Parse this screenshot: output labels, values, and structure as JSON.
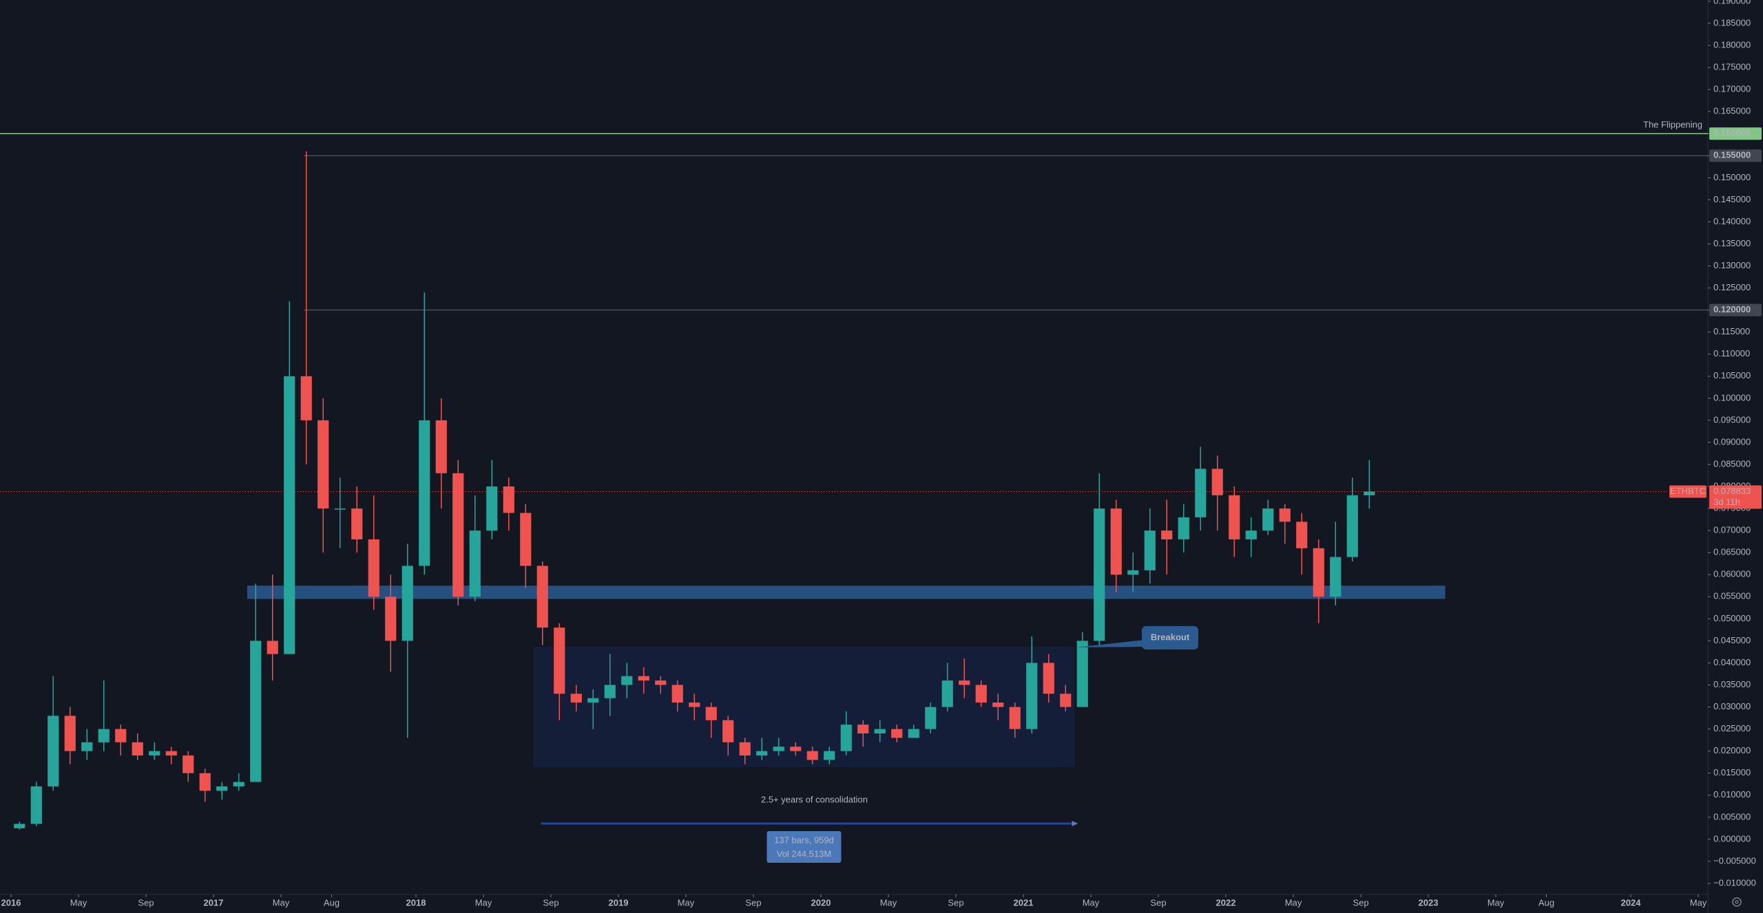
{
  "chart_data": {
    "type": "candlestick",
    "symbol": "ETHBTC",
    "x": [
      "2016-01",
      "2016-02",
      "2016-03",
      "2016-04",
      "2016-05",
      "2016-06",
      "2016-07",
      "2016-08",
      "2016-09",
      "2016-10",
      "2016-11",
      "2016-12",
      "2017-01",
      "2017-02",
      "2017-03",
      "2017-04",
      "2017-05",
      "2017-06",
      "2017-07",
      "2017-08",
      "2017-09",
      "2017-10",
      "2017-11",
      "2017-12",
      "2018-01",
      "2018-02",
      "2018-03",
      "2018-04",
      "2018-05",
      "2018-06",
      "2018-07",
      "2018-08",
      "2018-09",
      "2018-10",
      "2018-11",
      "2018-12",
      "2019-01",
      "2019-02",
      "2019-03",
      "2019-04",
      "2019-05",
      "2019-06",
      "2019-07",
      "2019-08",
      "2019-09",
      "2019-10",
      "2019-11",
      "2019-12",
      "2020-01",
      "2020-02",
      "2020-03",
      "2020-04",
      "2020-05",
      "2020-06",
      "2020-07",
      "2020-08",
      "2020-09",
      "2020-10",
      "2020-11",
      "2020-12",
      "2021-01",
      "2021-02",
      "2021-03",
      "2021-04",
      "2021-05",
      "2021-06",
      "2021-07",
      "2021-08",
      "2021-09",
      "2021-10",
      "2021-11",
      "2021-12",
      "2022-01",
      "2022-02",
      "2022-03",
      "2022-04",
      "2022-05",
      "2022-06",
      "2022-07",
      "2022-08",
      "2022-09"
    ],
    "open": [
      0.0025,
      0.0035,
      0.012,
      0.028,
      0.02,
      0.022,
      0.025,
      0.022,
      0.019,
      0.02,
      0.019,
      0.015,
      0.011,
      0.012,
      0.013,
      0.045,
      0.042,
      0.105,
      0.095,
      0.075,
      0.075,
      0.068,
      0.055,
      0.045,
      0.062,
      0.095,
      0.083,
      0.055,
      0.07,
      0.08,
      0.074,
      0.062,
      0.048,
      0.033,
      0.031,
      0.032,
      0.035,
      0.037,
      0.036,
      0.035,
      0.031,
      0.03,
      0.027,
      0.022,
      0.019,
      0.02,
      0.021,
      0.02,
      0.018,
      0.02,
      0.026,
      0.024,
      0.025,
      0.023,
      0.025,
      0.03,
      0.036,
      0.035,
      0.031,
      0.03,
      0.025,
      0.04,
      0.033,
      0.03,
      0.045,
      0.075,
      0.06,
      0.061,
      0.07,
      0.068,
      0.073,
      0.084,
      0.078,
      0.068,
      0.07,
      0.075,
      0.072,
      0.066,
      0.055,
      0.064,
      0.078
    ],
    "high": [
      0.004,
      0.013,
      0.037,
      0.03,
      0.025,
      0.036,
      0.026,
      0.024,
      0.022,
      0.021,
      0.02,
      0.016,
      0.013,
      0.015,
      0.058,
      0.06,
      0.122,
      0.156,
      0.1,
      0.082,
      0.08,
      0.078,
      0.06,
      0.067,
      0.124,
      0.1,
      0.086,
      0.078,
      0.086,
      0.082,
      0.076,
      0.063,
      0.049,
      0.035,
      0.034,
      0.042,
      0.04,
      0.039,
      0.037,
      0.036,
      0.033,
      0.031,
      0.028,
      0.023,
      0.023,
      0.023,
      0.022,
      0.021,
      0.021,
      0.029,
      0.027,
      0.027,
      0.026,
      0.026,
      0.031,
      0.04,
      0.041,
      0.036,
      0.033,
      0.031,
      0.046,
      0.042,
      0.035,
      0.047,
      0.083,
      0.077,
      0.065,
      0.075,
      0.077,
      0.076,
      0.089,
      0.087,
      0.08,
      0.073,
      0.077,
      0.076,
      0.074,
      0.068,
      0.072,
      0.082,
      0.086
    ],
    "low": [
      0.0022,
      0.003,
      0.011,
      0.017,
      0.018,
      0.02,
      0.019,
      0.018,
      0.018,
      0.017,
      0.013,
      0.0085,
      0.009,
      0.011,
      0.013,
      0.036,
      0.042,
      0.085,
      0.065,
      0.066,
      0.065,
      0.052,
      0.038,
      0.023,
      0.06,
      0.075,
      0.053,
      0.054,
      0.068,
      0.07,
      0.057,
      0.044,
      0.027,
      0.029,
      0.025,
      0.028,
      0.032,
      0.033,
      0.033,
      0.029,
      0.027,
      0.023,
      0.019,
      0.017,
      0.018,
      0.019,
      0.019,
      0.017,
      0.017,
      0.019,
      0.021,
      0.022,
      0.022,
      0.023,
      0.024,
      0.029,
      0.032,
      0.03,
      0.027,
      0.023,
      0.024,
      0.031,
      0.029,
      0.03,
      0.044,
      0.056,
      0.056,
      0.058,
      0.06,
      0.065,
      0.07,
      0.07,
      0.064,
      0.064,
      0.069,
      0.067,
      0.06,
      0.049,
      0.053,
      0.063,
      0.075
    ],
    "close": [
      0.0035,
      0.012,
      0.028,
      0.02,
      0.022,
      0.025,
      0.022,
      0.019,
      0.02,
      0.019,
      0.015,
      0.011,
      0.012,
      0.013,
      0.045,
      0.042,
      0.105,
      0.095,
      0.075,
      0.075,
      0.068,
      0.055,
      0.045,
      0.062,
      0.095,
      0.083,
      0.055,
      0.07,
      0.08,
      0.074,
      0.062,
      0.048,
      0.033,
      0.031,
      0.032,
      0.035,
      0.037,
      0.036,
      0.035,
      0.031,
      0.03,
      0.027,
      0.022,
      0.019,
      0.02,
      0.021,
      0.02,
      0.018,
      0.02,
      0.026,
      0.024,
      0.025,
      0.023,
      0.025,
      0.03,
      0.036,
      0.035,
      0.031,
      0.03,
      0.025,
      0.04,
      0.033,
      0.03,
      0.045,
      0.075,
      0.06,
      0.061,
      0.07,
      0.068,
      0.073,
      0.084,
      0.078,
      0.068,
      0.07,
      0.075,
      0.072,
      0.066,
      0.055,
      0.064,
      0.078,
      0.078833
    ],
    "up_color": "#26a69a",
    "down_color": "#ef5350",
    "xlim": [
      "2016-01",
      "2024-05"
    ],
    "xticks": [
      {
        "value": "2016-01",
        "label": "2016"
      },
      {
        "value": "2016-05",
        "label": "May"
      },
      {
        "value": "2016-09",
        "label": "Sep"
      },
      {
        "value": "2017-01",
        "label": "2017"
      },
      {
        "value": "2017-05",
        "label": "May"
      },
      {
        "value": "2017-08",
        "label": "Aug"
      },
      {
        "value": "2018-01",
        "label": "2018"
      },
      {
        "value": "2018-05",
        "label": "May"
      },
      {
        "value": "2018-09",
        "label": "Sep"
      },
      {
        "value": "2019-01",
        "label": "2019"
      },
      {
        "value": "2019-05",
        "label": "May"
      },
      {
        "value": "2019-09",
        "label": "Sep"
      },
      {
        "value": "2020-01",
        "label": "2020"
      },
      {
        "value": "2020-05",
        "label": "May"
      },
      {
        "value": "2020-09",
        "label": "Sep"
      },
      {
        "value": "2021-01",
        "label": "2021"
      },
      {
        "value": "2021-05",
        "label": "May"
      },
      {
        "value": "2021-09",
        "label": "Sep"
      },
      {
        "value": "2022-01",
        "label": "2022"
      },
      {
        "value": "2022-05",
        "label": "May"
      },
      {
        "value": "2022-09",
        "label": "Sep"
      },
      {
        "value": "2023-01",
        "label": "2023"
      },
      {
        "value": "2023-05",
        "label": "May"
      },
      {
        "value": "2023-08",
        "label": "Aug"
      },
      {
        "value": "2024-01",
        "label": "2024"
      },
      {
        "value": "2024-05",
        "label": "May"
      }
    ],
    "ylim": [
      -0.0125,
      0.1903
    ],
    "yticks": [
      {
        "value": -0.01,
        "label": "−0.010000"
      },
      {
        "value": -0.005,
        "label": "−0.005000"
      },
      {
        "value": 0,
        "label": "0.000000"
      },
      {
        "value": 0.005,
        "label": "0.005000"
      },
      {
        "value": 0.01,
        "label": "0.010000"
      },
      {
        "value": 0.015,
        "label": "0.015000"
      },
      {
        "value": 0.02,
        "label": "0.020000"
      },
      {
        "value": 0.025,
        "label": "0.025000"
      },
      {
        "value": 0.03,
        "label": "0.030000"
      },
      {
        "value": 0.035,
        "label": "0.035000"
      },
      {
        "value": 0.04,
        "label": "0.040000"
      },
      {
        "value": 0.045,
        "label": "0.045000"
      },
      {
        "value": 0.05,
        "label": "0.050000"
      },
      {
        "value": 0.055,
        "label": "0.055000"
      },
      {
        "value": 0.06,
        "label": "0.060000"
      },
      {
        "value": 0.065,
        "label": "0.065000"
      },
      {
        "value": 0.07,
        "label": "0.070000"
      },
      {
        "value": 0.075,
        "label": "0.075000"
      },
      {
        "value": 0.08,
        "label": "0.080000"
      },
      {
        "value": 0.085,
        "label": "0.085000"
      },
      {
        "value": 0.09,
        "label": "0.090000"
      },
      {
        "value": 0.095,
        "label": "0.095000"
      },
      {
        "value": 0.1,
        "label": "0.100000"
      },
      {
        "value": 0.105,
        "label": "0.105000"
      },
      {
        "value": 0.11,
        "label": "0.110000"
      },
      {
        "value": 0.115,
        "label": "0.115000"
      },
      {
        "value": 0.12,
        "label": "0.120000"
      },
      {
        "value": 0.125,
        "label": "0.125000"
      },
      {
        "value": 0.13,
        "label": "0.130000"
      },
      {
        "value": 0.135,
        "label": "0.135000"
      },
      {
        "value": 0.14,
        "label": "0.140000"
      },
      {
        "value": 0.145,
        "label": "0.145000"
      },
      {
        "value": 0.15,
        "label": "0.150000"
      },
      {
        "value": 0.155,
        "label": "0.155000"
      },
      {
        "value": 0.16,
        "label": "0.160000"
      },
      {
        "value": 0.165,
        "label": "0.165000"
      },
      {
        "value": 0.17,
        "label": "0.170000"
      },
      {
        "value": 0.175,
        "label": "0.175000"
      },
      {
        "value": 0.18,
        "label": "0.180000"
      },
      {
        "value": 0.185,
        "label": "0.185000"
      },
      {
        "value": 0.19,
        "label": "0.190000"
      }
    ],
    "flippening": {
      "name": "The Flippening",
      "value": 0.16,
      "label": "0.160000",
      "color": "#81c784"
    },
    "levels": [
      {
        "value": 0.155,
        "label": "0.155000"
      },
      {
        "value": 0.12,
        "label": "0.120000"
      }
    ],
    "last_price": {
      "value": 0.078833,
      "label": "0.078833",
      "countdown": "3d 11h"
    },
    "support_zone": {
      "from": "2017-03",
      "to": "2023-02",
      "low": 0.0545,
      "high": 0.0575,
      "color": "#2a5a8f"
    },
    "consolidation": {
      "from": "2018-08",
      "to": "2021-04",
      "low": 0.0165,
      "high": 0.0435,
      "text": "2.5+ years of consolidation",
      "range_label": "137 bars, 959d",
      "volume_label": "Vol 244.513M"
    },
    "breakout": "Breakout"
  }
}
